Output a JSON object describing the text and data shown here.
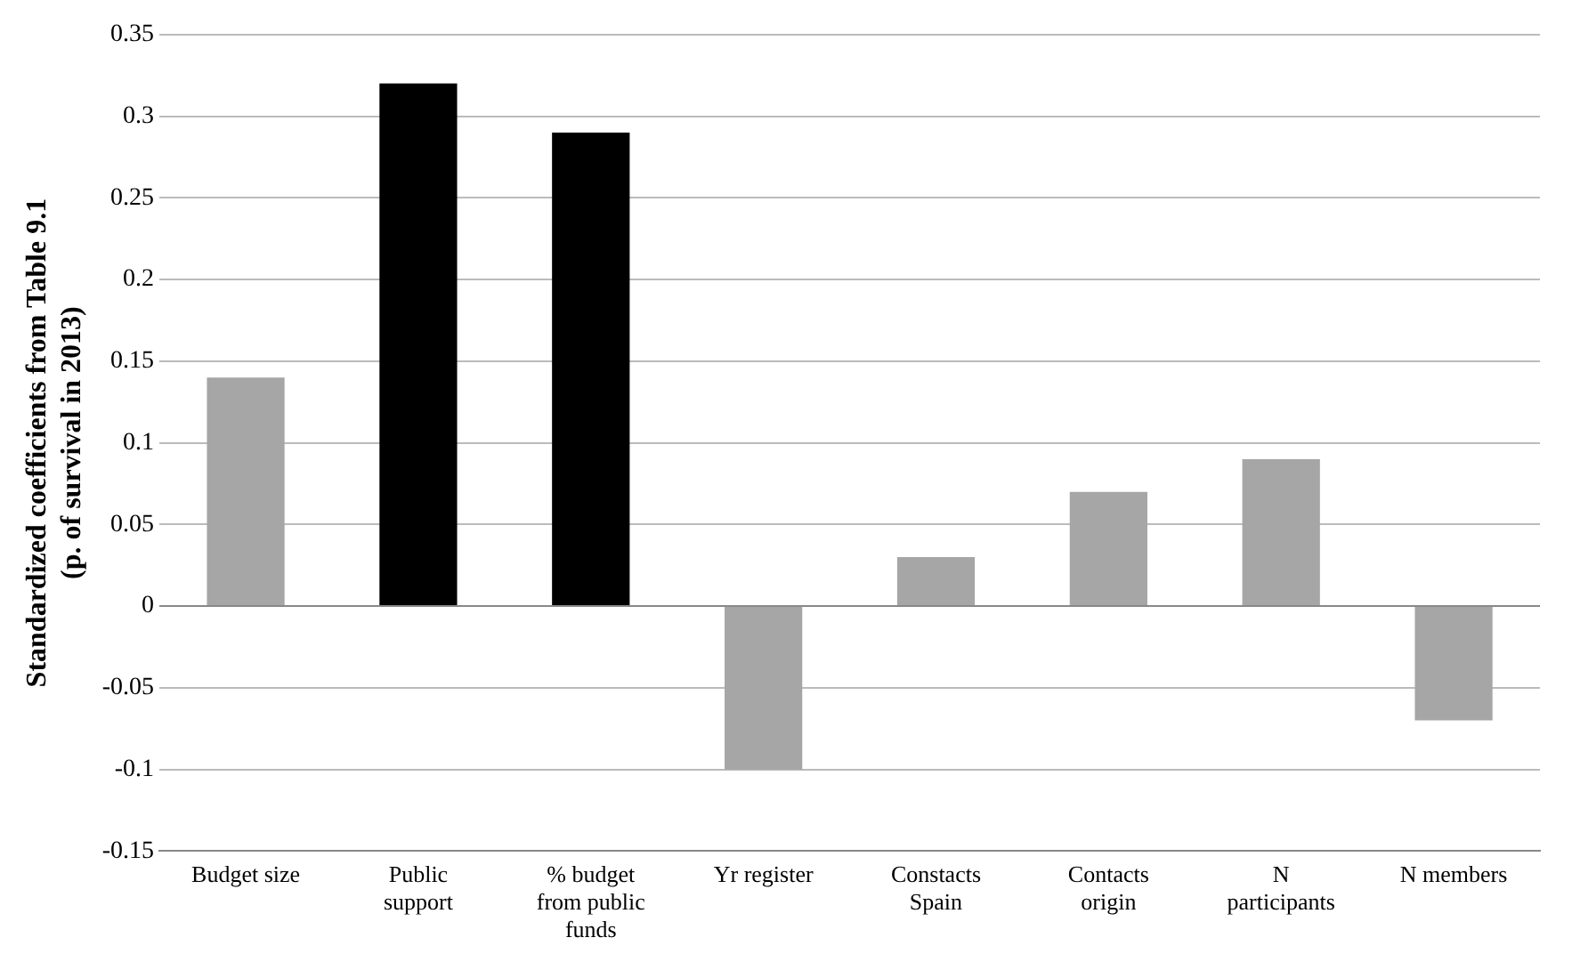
{
  "chart_data": {
    "type": "bar",
    "ylabel": "Standardized coefficients from Table 9.1\n(p. of survival in 2013)",
    "categories": [
      "Budget size",
      "Public support",
      "% budget from public funds",
      "Yr register",
      "Constacts Spain",
      "Contacts origin",
      "N participants",
      "N members"
    ],
    "values": [
      0.14,
      0.32,
      0.29,
      -0.1,
      0.03,
      0.07,
      0.09,
      -0.07
    ],
    "colors": [
      "#a6a6a6",
      "#000000",
      "#000000",
      "#a6a6a6",
      "#a6a6a6",
      "#a6a6a6",
      "#a6a6a6",
      "#a6a6a6"
    ],
    "ylim": [
      -0.15,
      0.35
    ],
    "yticks": [
      -0.15,
      -0.1,
      -0.05,
      0,
      0.05,
      0.1,
      0.15,
      0.2,
      0.25,
      0.3,
      0.35
    ],
    "grid": "y"
  }
}
